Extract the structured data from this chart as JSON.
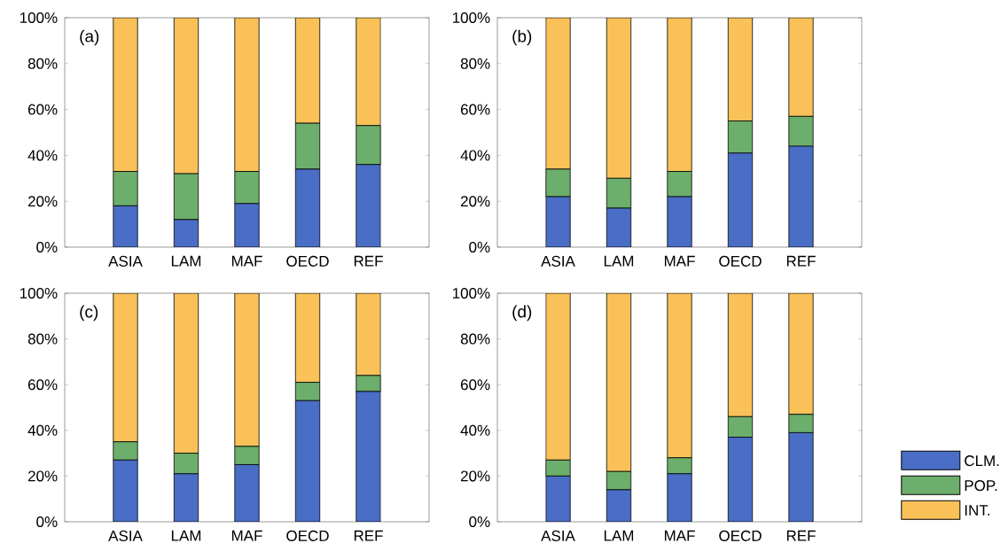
{
  "chart_data": [
    {
      "type": "bar",
      "stacked": true,
      "categories": [
        "ASIA",
        "LAM",
        "MAF",
        "OECD",
        "REF"
      ],
      "annotations": [
        "(a)"
      ],
      "ylim": [
        0,
        100
      ],
      "yticks": [
        {
          "value": 0,
          "label": "0%"
        },
        {
          "value": 20,
          "label": "20%"
        },
        {
          "value": 40,
          "label": "40%"
        },
        {
          "value": 60,
          "label": "60%"
        },
        {
          "value": 80,
          "label": "80%"
        },
        {
          "value": 100,
          "label": "100%"
        }
      ],
      "series": [
        {
          "color": "#4a6dc5",
          "values": [
            18,
            12,
            19,
            34,
            36
          ]
        },
        {
          "color": "#6cae6b",
          "values": [
            15,
            20,
            14,
            20,
            17
          ]
        },
        {
          "color": "#f9c158",
          "values": [
            67,
            68,
            67,
            46,
            47
          ]
        }
      ]
    },
    {
      "type": "bar",
      "stacked": true,
      "categories": [
        "ASIA",
        "LAM",
        "MAF",
        "OECD",
        "REF"
      ],
      "annotations": [
        "(b)"
      ],
      "ylim": [
        0,
        100
      ],
      "yticks": [
        {
          "value": 0,
          "label": "0%"
        },
        {
          "value": 20,
          "label": "20%"
        },
        {
          "value": 40,
          "label": "40%"
        },
        {
          "value": 60,
          "label": "60%"
        },
        {
          "value": 80,
          "label": "80%"
        },
        {
          "value": 100,
          "label": "100%"
        }
      ],
      "series": [
        {
          "color": "#4a6dc5",
          "values": [
            22,
            17,
            22,
            41,
            44
          ]
        },
        {
          "color": "#6cae6b",
          "values": [
            12,
            13,
            11,
            14,
            13
          ]
        },
        {
          "color": "#f9c158",
          "values": [
            66,
            70,
            67,
            45,
            43
          ]
        }
      ]
    },
    {
      "type": "bar",
      "stacked": true,
      "categories": [
        "ASIA",
        "LAM",
        "MAF",
        "OECD",
        "REF"
      ],
      "annotations": [
        "(c)"
      ],
      "ylim": [
        0,
        100
      ],
      "yticks": [
        {
          "value": 0,
          "label": "0%"
        },
        {
          "value": 20,
          "label": "20%"
        },
        {
          "value": 40,
          "label": "40%"
        },
        {
          "value": 60,
          "label": "60%"
        },
        {
          "value": 80,
          "label": "80%"
        },
        {
          "value": 100,
          "label": "100%"
        }
      ],
      "series": [
        {
          "color": "#4a6dc5",
          "values": [
            27,
            21,
            25,
            53,
            57
          ]
        },
        {
          "color": "#6cae6b",
          "values": [
            8,
            9,
            8,
            8,
            7
          ]
        },
        {
          "color": "#f9c158",
          "values": [
            65,
            70,
            67,
            39,
            36
          ]
        }
      ]
    },
    {
      "type": "bar",
      "stacked": true,
      "categories": [
        "ASIA",
        "LAM",
        "MAF",
        "OECD",
        "REF"
      ],
      "annotations": [
        "(d)"
      ],
      "ylim": [
        0,
        100
      ],
      "yticks": [
        {
          "value": 0,
          "label": "0%"
        },
        {
          "value": 20,
          "label": "20%"
        },
        {
          "value": 40,
          "label": "40%"
        },
        {
          "value": 60,
          "label": "60%"
        },
        {
          "value": 80,
          "label": "80%"
        },
        {
          "value": 100,
          "label": "100%"
        }
      ],
      "legend": "bottom right",
      "series": [
        {
          "name": "CLM.",
          "color": "#4a6dc5",
          "values": [
            20,
            14,
            21,
            37,
            39
          ]
        },
        {
          "name": "POP.",
          "color": "#6cae6b",
          "values": [
            7,
            8,
            7,
            9,
            8
          ]
        },
        {
          "name": "INT.",
          "color": "#f9c158",
          "values": [
            73,
            78,
            72,
            54,
            53
          ]
        }
      ]
    }
  ]
}
